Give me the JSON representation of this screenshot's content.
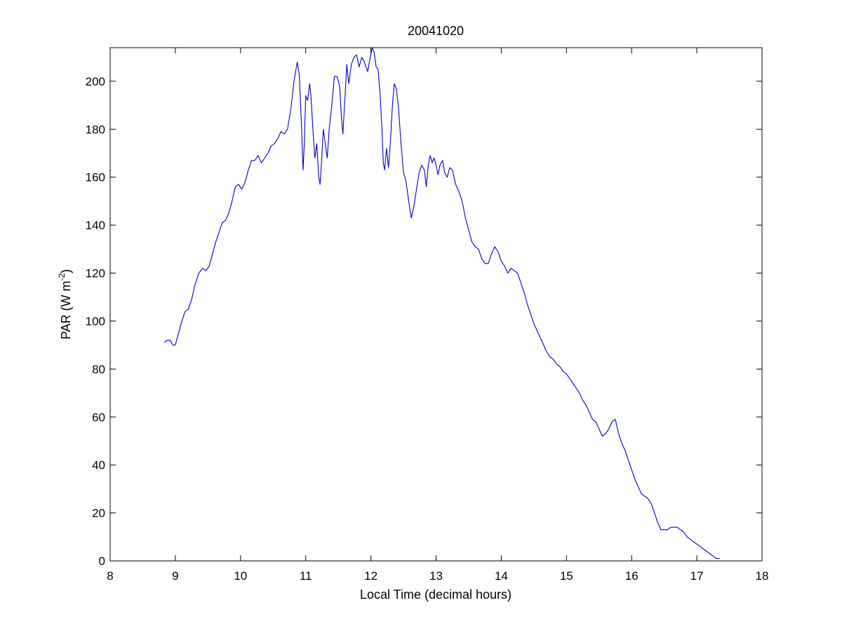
{
  "chart_data": {
    "type": "line",
    "title": "20041020",
    "xlabel": "Local Time (decimal hours)",
    "ylabel": "PAR (W m",
    "ylabel_sup": "-2",
    "ylabel_close": ")",
    "xlim": [
      8,
      18
    ],
    "ylim": [
      0,
      214
    ],
    "xticks": [
      8,
      9,
      10,
      11,
      12,
      13,
      14,
      15,
      16,
      17,
      18
    ],
    "yticks": [
      0,
      20,
      40,
      60,
      80,
      100,
      120,
      140,
      160,
      180,
      200
    ],
    "grid": false,
    "series": [
      {
        "color": "#0000cc",
        "points": [
          [
            8.83,
            91
          ],
          [
            8.87,
            92
          ],
          [
            8.92,
            92
          ],
          [
            8.96,
            90
          ],
          [
            9.0,
            90
          ],
          [
            9.05,
            95
          ],
          [
            9.1,
            100
          ],
          [
            9.15,
            104
          ],
          [
            9.2,
            105
          ],
          [
            9.25,
            109
          ],
          [
            9.3,
            115
          ],
          [
            9.36,
            120
          ],
          [
            9.42,
            122
          ],
          [
            9.47,
            121
          ],
          [
            9.52,
            123
          ],
          [
            9.57,
            128
          ],
          [
            9.62,
            133
          ],
          [
            9.67,
            137
          ],
          [
            9.72,
            141
          ],
          [
            9.77,
            142
          ],
          [
            9.82,
            145
          ],
          [
            9.87,
            150
          ],
          [
            9.92,
            156
          ],
          [
            9.97,
            157
          ],
          [
            10.02,
            155
          ],
          [
            10.07,
            158
          ],
          [
            10.12,
            163
          ],
          [
            10.17,
            167
          ],
          [
            10.22,
            167
          ],
          [
            10.27,
            169
          ],
          [
            10.32,
            166
          ],
          [
            10.37,
            168
          ],
          [
            10.42,
            170
          ],
          [
            10.47,
            173
          ],
          [
            10.52,
            174
          ],
          [
            10.57,
            176
          ],
          [
            10.62,
            179
          ],
          [
            10.67,
            178
          ],
          [
            10.72,
            180
          ],
          [
            10.77,
            188
          ],
          [
            10.82,
            200
          ],
          [
            10.87,
            208
          ],
          [
            10.9,
            203
          ],
          [
            10.93,
            185
          ],
          [
            10.96,
            163
          ],
          [
            10.98,
            175
          ],
          [
            11.0,
            194
          ],
          [
            11.03,
            192
          ],
          [
            11.06,
            199
          ],
          [
            11.08,
            194
          ],
          [
            11.11,
            180
          ],
          [
            11.14,
            168
          ],
          [
            11.17,
            174
          ],
          [
            11.2,
            160
          ],
          [
            11.22,
            157
          ],
          [
            11.24,
            165
          ],
          [
            11.27,
            180
          ],
          [
            11.3,
            174
          ],
          [
            11.33,
            168
          ],
          [
            11.36,
            180
          ],
          [
            11.4,
            190
          ],
          [
            11.44,
            202
          ],
          [
            11.48,
            202
          ],
          [
            11.52,
            198
          ],
          [
            11.55,
            184
          ],
          [
            11.57,
            178
          ],
          [
            11.6,
            192
          ],
          [
            11.63,
            207
          ],
          [
            11.66,
            199
          ],
          [
            11.7,
            207
          ],
          [
            11.74,
            210
          ],
          [
            11.78,
            211
          ],
          [
            11.82,
            206
          ],
          [
            11.86,
            210
          ],
          [
            11.9,
            208
          ],
          [
            11.95,
            204
          ],
          [
            11.99,
            210
          ],
          [
            12.02,
            214
          ],
          [
            12.05,
            212
          ],
          [
            12.08,
            206
          ],
          [
            12.11,
            205
          ],
          [
            12.14,
            195
          ],
          [
            12.17,
            180
          ],
          [
            12.19,
            166
          ],
          [
            12.21,
            163
          ],
          [
            12.24,
            172
          ],
          [
            12.27,
            164
          ],
          [
            12.3,
            175
          ],
          [
            12.33,
            190
          ],
          [
            12.36,
            199
          ],
          [
            12.39,
            197
          ],
          [
            12.42,
            190
          ],
          [
            12.46,
            175
          ],
          [
            12.5,
            162
          ],
          [
            12.54,
            158
          ],
          [
            12.58,
            150
          ],
          [
            12.62,
            143
          ],
          [
            12.66,
            148
          ],
          [
            12.7,
            155
          ],
          [
            12.74,
            162
          ],
          [
            12.78,
            165
          ],
          [
            12.82,
            163
          ],
          [
            12.85,
            156
          ],
          [
            12.88,
            165
          ],
          [
            12.91,
            169
          ],
          [
            12.94,
            166
          ],
          [
            12.97,
            168
          ],
          [
            13.0,
            165
          ],
          [
            13.03,
            161
          ],
          [
            13.06,
            165
          ],
          [
            13.1,
            167
          ],
          [
            13.13,
            162
          ],
          [
            13.17,
            160
          ],
          [
            13.21,
            164
          ],
          [
            13.25,
            163
          ],
          [
            13.3,
            157
          ],
          [
            13.35,
            154
          ],
          [
            13.4,
            150
          ],
          [
            13.45,
            143
          ],
          [
            13.5,
            138
          ],
          [
            13.55,
            133
          ],
          [
            13.6,
            131
          ],
          [
            13.65,
            130
          ],
          [
            13.7,
            126
          ],
          [
            13.75,
            124
          ],
          [
            13.8,
            124
          ],
          [
            13.85,
            128
          ],
          [
            13.9,
            131
          ],
          [
            13.95,
            129
          ],
          [
            14.0,
            125
          ],
          [
            14.05,
            123
          ],
          [
            14.1,
            120
          ],
          [
            14.15,
            122
          ],
          [
            14.2,
            121
          ],
          [
            14.25,
            120
          ],
          [
            14.3,
            116
          ],
          [
            14.35,
            112
          ],
          [
            14.4,
            107
          ],
          [
            14.45,
            103
          ],
          [
            14.5,
            99
          ],
          [
            14.55,
            96
          ],
          [
            14.6,
            93
          ],
          [
            14.65,
            90
          ],
          [
            14.7,
            87
          ],
          [
            14.75,
            85
          ],
          [
            14.8,
            84
          ],
          [
            14.85,
            82
          ],
          [
            14.9,
            81
          ],
          [
            14.95,
            79
          ],
          [
            15.0,
            78
          ],
          [
            15.05,
            76
          ],
          [
            15.1,
            74
          ],
          [
            15.15,
            72
          ],
          [
            15.2,
            70
          ],
          [
            15.25,
            67
          ],
          [
            15.3,
            65
          ],
          [
            15.35,
            62
          ],
          [
            15.4,
            59
          ],
          [
            15.45,
            58
          ],
          [
            15.5,
            55
          ],
          [
            15.55,
            52
          ],
          [
            15.6,
            53
          ],
          [
            15.65,
            55
          ],
          [
            15.7,
            58
          ],
          [
            15.75,
            59
          ],
          [
            15.8,
            53
          ],
          [
            15.85,
            49
          ],
          [
            15.9,
            46
          ],
          [
            15.95,
            42
          ],
          [
            16.0,
            38
          ],
          [
            16.05,
            34
          ],
          [
            16.1,
            31
          ],
          [
            16.15,
            28
          ],
          [
            16.2,
            27
          ],
          [
            16.25,
            26
          ],
          [
            16.3,
            24
          ],
          [
            16.35,
            20
          ],
          [
            16.4,
            16
          ],
          [
            16.45,
            13
          ],
          [
            16.5,
            13
          ],
          [
            16.55,
            13
          ],
          [
            16.6,
            14
          ],
          [
            16.65,
            14
          ],
          [
            16.7,
            14
          ],
          [
            16.75,
            13
          ],
          [
            16.8,
            12
          ],
          [
            16.85,
            10
          ],
          [
            16.9,
            9
          ],
          [
            16.95,
            8
          ],
          [
            17.0,
            7
          ],
          [
            17.05,
            6
          ],
          [
            17.1,
            5
          ],
          [
            17.15,
            4
          ],
          [
            17.2,
            3
          ],
          [
            17.25,
            2
          ],
          [
            17.3,
            1
          ],
          [
            17.35,
            1
          ]
        ]
      }
    ]
  }
}
